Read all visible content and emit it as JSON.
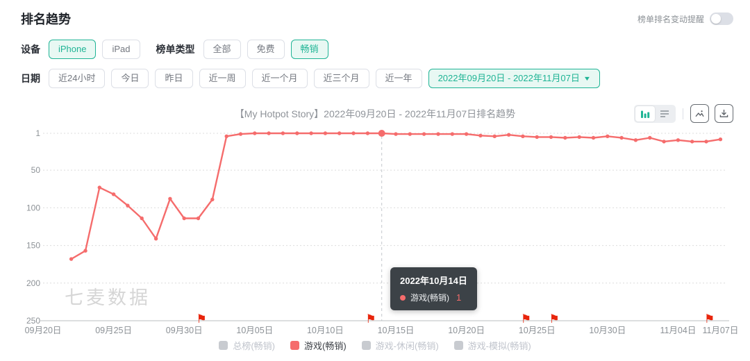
{
  "page": {
    "title": "排名趋势"
  },
  "header": {
    "reminder_label": "榜单排名变动提醒",
    "reminder_on": false
  },
  "filters": {
    "device": {
      "label": "设备",
      "options": [
        {
          "label": "iPhone",
          "selected": true
        },
        {
          "label": "iPad",
          "selected": false
        }
      ]
    },
    "chart_type": {
      "label": "榜单类型",
      "options": [
        {
          "label": "全部",
          "selected": false
        },
        {
          "label": "免费",
          "selected": false
        },
        {
          "label": "畅销",
          "selected": true
        }
      ]
    },
    "date": {
      "label": "日期",
      "options": [
        {
          "label": "近24小时",
          "selected": false
        },
        {
          "label": "今日",
          "selected": false
        },
        {
          "label": "昨日",
          "selected": false
        },
        {
          "label": "近一周",
          "selected": false
        },
        {
          "label": "近一个月",
          "selected": false
        },
        {
          "label": "近三个月",
          "selected": false
        },
        {
          "label": "近一年",
          "selected": false
        }
      ],
      "range": {
        "label": "2022年09月20日 - 2022年11月07日",
        "selected": true
      }
    }
  },
  "chart_header": {
    "title": "【My Hotpot Story】2022年09月20日 - 2022年11月07日排名趋势",
    "toolbar_icons": [
      "bar-chart-icon",
      "list-view-icon",
      "image-export-icon",
      "download-icon"
    ]
  },
  "tooltip": {
    "date": "2022年10月14日",
    "series": "游戏(畅销)",
    "value": "1"
  },
  "watermark": "七麦数据",
  "colors": {
    "accent": "#1fb495",
    "accent_bg": "#e8f8f3",
    "line": "#f56c6c",
    "flag": "#e8250c",
    "grid": "#dcdcdc",
    "axis": "#c6c9cc",
    "tick": "#8c9196",
    "inactive": "#c8cbd0",
    "inactive_text": "#c0c4cc",
    "watermark": "#d6d6d6",
    "tooltip_bg": "#343a40"
  },
  "chart_data": {
    "type": "line",
    "title": "【My Hotpot Story】2022年09月20日 - 2022年11月07日排名趋势",
    "y_inverted": true,
    "y_ticks": [
      1,
      50,
      100,
      150,
      200,
      250
    ],
    "ylim": [
      1,
      250
    ],
    "x_ticks": [
      "09月20日",
      "09月25日",
      "09月30日",
      "10月05日",
      "10月10日",
      "10月15日",
      "10月20日",
      "10月25日",
      "10月30日",
      "11月04日",
      "11月07日"
    ],
    "grid": "dotted-horizontal",
    "legend_position": "bottom",
    "series": [
      {
        "name": "游戏(畅销)",
        "color": "#f56c6c",
        "dates": [
          "09月22日",
          "09月23日",
          "09月24日",
          "09月25日",
          "09月26日",
          "09月27日",
          "09月28日",
          "09月29日",
          "09月30日",
          "10月01日",
          "10月02日",
          "10月03日",
          "10月04日",
          "10月05日",
          "10月06日",
          "10月07日",
          "10月08日",
          "10月09日",
          "10月10日",
          "10月11日",
          "10月12日",
          "10月13日",
          "10月14日",
          "10月15日",
          "10月16日",
          "10月17日",
          "10月18日",
          "10月19日",
          "10月20日",
          "10月21日",
          "10月22日",
          "10月23日",
          "10月24日",
          "10月25日",
          "10月26日",
          "10月27日",
          "10月28日",
          "10月29日",
          "10月30日",
          "10月31日",
          "11月01日",
          "11月02日",
          "11月03日",
          "11月04日",
          "11月05日",
          "11月06日",
          "11月07日"
        ],
        "values": [
          168,
          157,
          73,
          82,
          97,
          114,
          141,
          88,
          114,
          114,
          89,
          5,
          2,
          1,
          1,
          1,
          1,
          1,
          1,
          1,
          1,
          1,
          1,
          2,
          2,
          2,
          2,
          2,
          2,
          4,
          5,
          3,
          5,
          6,
          6,
          7,
          6,
          7,
          5,
          7,
          10,
          7,
          12,
          10,
          12,
          12,
          9
        ]
      }
    ],
    "legend": [
      {
        "label": "总榜(畅销)",
        "active": false
      },
      {
        "label": "游戏(畅销)",
        "active": true,
        "color": "#f56c6c"
      },
      {
        "label": "游戏-休闲(畅销)",
        "active": false
      },
      {
        "label": "游戏-模拟(畅销)",
        "active": false
      }
    ],
    "flags": [
      "10月01日",
      "10月13日",
      "10月24日",
      "10月26日",
      "11月06日"
    ],
    "hover": {
      "date": "10月14日",
      "value": 1
    }
  }
}
